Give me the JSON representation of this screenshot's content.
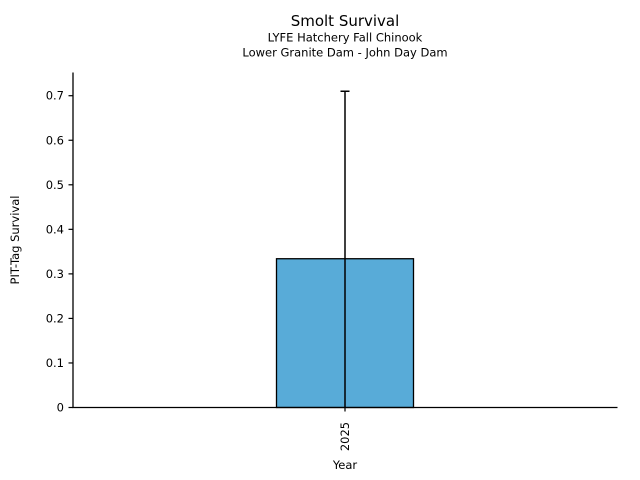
{
  "chart_data": {
    "type": "bar",
    "title": "Smolt Survival",
    "subtitle": [
      "LYFE Hatchery Fall Chinook",
      "Lower Granite Dam - John Day Dam"
    ],
    "categories": [
      "2025"
    ],
    "values": [
      0.334
    ],
    "error_upper": [
      0.71
    ],
    "error_lower": [
      0.0
    ],
    "xlabel": "Year",
    "ylabel": "PIT-Tag Survival",
    "ylim": [
      0,
      0.751
    ],
    "yticks": [
      0,
      0.1,
      0.2,
      0.3,
      0.4,
      0.5,
      0.6,
      0.7
    ],
    "ytick_labels": [
      "0",
      "0.1",
      "0.2",
      "0.3",
      "0.4",
      "0.5",
      "0.6",
      "0.7"
    ],
    "grid": false,
    "legend": "none",
    "xtick_rotation_deg": 90,
    "colors": {
      "bar_fill": "#58abd8",
      "bar_edge": "#000000",
      "error": "#000000",
      "axis": "#000000",
      "text": "#000000",
      "background": "#ffffff"
    }
  }
}
